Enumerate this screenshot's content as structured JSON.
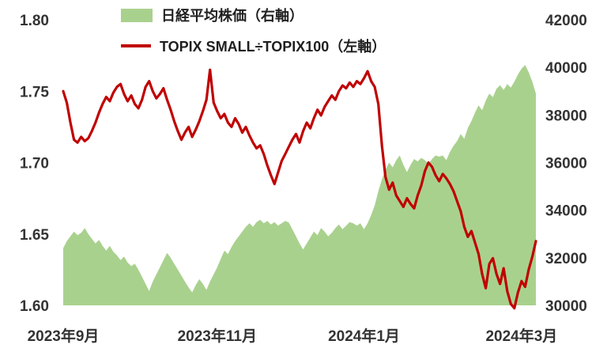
{
  "chart_data": {
    "type": "area",
    "subtype": "combo-area-line-dual-axis",
    "title": "",
    "grid": "off",
    "legend_position": "top-center",
    "left_axis": {
      "min": 1.6,
      "max": 1.8,
      "ticks": [
        "1.80",
        "1.75",
        "1.70",
        "1.65",
        "1.60"
      ]
    },
    "right_axis": {
      "min": 30000,
      "max": 42000,
      "ticks": [
        "42000",
        "40000",
        "38000",
        "36000",
        "34000",
        "32000",
        "30000"
      ]
    },
    "x_axis": {
      "ticks": [
        "2023年9月",
        "2023年11月",
        "2024年1月",
        "2024年3月"
      ],
      "tick_day_index": [
        0,
        43,
        84,
        128
      ],
      "range": "2023-09 to 2024-03, daily points"
    },
    "series": [
      {
        "name": "nikkei-225",
        "legend_label": "日経平均株価（右軸）",
        "type": "area",
        "axis": "right",
        "color": "#a9d18e",
        "values": [
          32400,
          32700,
          32900,
          33100,
          32950,
          33050,
          33250,
          33000,
          32800,
          32600,
          32750,
          32500,
          32300,
          32500,
          32250,
          32100,
          31900,
          32050,
          31800,
          31650,
          31750,
          31500,
          31200,
          30900,
          30600,
          31000,
          31300,
          31600,
          31900,
          32200,
          32000,
          31750,
          31500,
          31250,
          31000,
          30750,
          30550,
          30850,
          31100,
          30900,
          30650,
          31000,
          31300,
          31600,
          31950,
          32300,
          32150,
          32450,
          32700,
          32900,
          33100,
          33300,
          33450,
          33300,
          33500,
          33600,
          33450,
          33550,
          33400,
          33500,
          33350,
          33450,
          33550,
          33480,
          33200,
          32900,
          32600,
          32350,
          32600,
          32850,
          33100,
          32950,
          33250,
          33100,
          32900,
          33050,
          33250,
          33400,
          33200,
          33350,
          33500,
          33450,
          33350,
          33450,
          33200,
          33450,
          33800,
          34200,
          34800,
          35300,
          35700,
          36000,
          35800,
          36100,
          36300,
          35900,
          35600,
          35900,
          36150,
          36050,
          36200,
          36100,
          35950,
          36150,
          36300,
          36250,
          36300,
          36100,
          36450,
          36700,
          36900,
          37200,
          37000,
          37450,
          37750,
          38100,
          38400,
          38200,
          38600,
          38900,
          38750,
          39100,
          39250,
          39050,
          39300,
          39150,
          39400,
          39700,
          39950,
          40100,
          39800,
          39400,
          38900
        ]
      },
      {
        "name": "topix-small-div-topix100",
        "legend_label": "TOPIX SMALL÷TOPIX100（左軸）",
        "type": "line",
        "axis": "left",
        "color": "#c00000",
        "values": [
          1.75,
          1.742,
          1.728,
          1.716,
          1.714,
          1.718,
          1.715,
          1.717,
          1.722,
          1.728,
          1.735,
          1.741,
          1.746,
          1.743,
          1.749,
          1.753,
          1.755,
          1.748,
          1.743,
          1.747,
          1.741,
          1.738,
          1.744,
          1.753,
          1.757,
          1.75,
          1.745,
          1.748,
          1.752,
          1.744,
          1.737,
          1.729,
          1.722,
          1.716,
          1.721,
          1.725,
          1.718,
          1.723,
          1.729,
          1.736,
          1.744,
          1.765,
          1.742,
          1.736,
          1.731,
          1.734,
          1.728,
          1.725,
          1.731,
          1.727,
          1.721,
          1.725,
          1.719,
          1.714,
          1.71,
          1.712,
          1.706,
          1.698,
          1.691,
          1.685,
          1.693,
          1.701,
          1.706,
          1.711,
          1.716,
          1.72,
          1.714,
          1.722,
          1.728,
          1.724,
          1.731,
          1.737,
          1.733,
          1.739,
          1.743,
          1.747,
          1.744,
          1.75,
          1.754,
          1.752,
          1.756,
          1.753,
          1.757,
          1.755,
          1.759,
          1.764,
          1.757,
          1.753,
          1.741,
          1.712,
          1.69,
          1.681,
          1.686,
          1.677,
          1.673,
          1.669,
          1.675,
          1.671,
          1.668,
          1.677,
          1.684,
          1.694,
          1.7,
          1.697,
          1.691,
          1.687,
          1.692,
          1.689,
          1.685,
          1.68,
          1.673,
          1.666,
          1.655,
          1.648,
          1.652,
          1.644,
          1.636,
          1.622,
          1.612,
          1.629,
          1.633,
          1.622,
          1.615,
          1.626,
          1.61,
          1.601,
          1.598,
          1.609,
          1.617,
          1.613,
          1.625,
          1.634,
          1.645
        ]
      }
    ]
  },
  "colors": {
    "area_green": "#a9d18e",
    "line_red": "#c00000",
    "axis_text": "#333333",
    "background": "#ffffff"
  }
}
